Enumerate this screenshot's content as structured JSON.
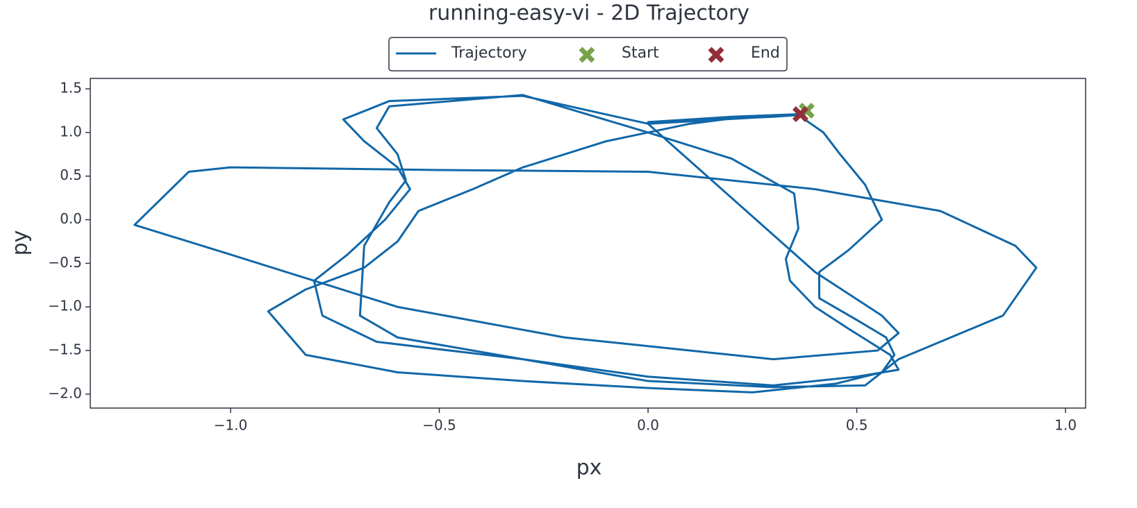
{
  "chart_data": {
    "type": "line",
    "title": "running-easy-vi - 2D Trajectory",
    "x_label": "px",
    "y_label": "py",
    "xlim": [
      -1.336,
      1.048
    ],
    "ylim": [
      -2.16,
      1.62
    ],
    "xticks": [
      {
        "value": -1,
        "label": "−1.0"
      },
      {
        "value": -0.5,
        "label": "−0.5"
      },
      {
        "value": 0,
        "label": "0.0"
      },
      {
        "value": 0.5,
        "label": "0.5"
      },
      {
        "value": 1,
        "label": "1.0"
      }
    ],
    "yticks": [
      {
        "value": 1.5,
        "label": "1.5"
      },
      {
        "value": 1,
        "label": "1.0"
      },
      {
        "value": 0.5,
        "label": "0.5"
      },
      {
        "value": 0,
        "label": "0.0"
      },
      {
        "value": -0.5,
        "label": "−0.5"
      },
      {
        "value": -1,
        "label": "−1.0"
      },
      {
        "value": -1.5,
        "label": "−1.5"
      },
      {
        "value": -2,
        "label": "−2.0"
      }
    ],
    "series": [
      {
        "name": "Trajectory",
        "color": "#1167a8",
        "x": [
          0.38,
          0.36,
          0.42,
          0.46,
          0.52,
          0.56,
          0.48,
          0.41,
          0.41,
          0.5,
          0.57,
          0.59,
          0.56,
          0.45,
          0.25,
          0.0,
          -0.3,
          -0.6,
          -0.82,
          -0.91,
          -0.82,
          -0.68,
          -0.6,
          -0.55,
          -0.42,
          -0.3,
          -0.1,
          0.1,
          0.2,
          0.3,
          0.36,
          0.0,
          -0.3,
          -0.62,
          -0.73,
          -0.68,
          -0.6,
          -0.57,
          -0.63,
          -0.72,
          -0.8,
          -0.78,
          -0.65,
          -0.3,
          0.0,
          0.3,
          0.5,
          0.6,
          0.58,
          0.48,
          0.4,
          0.34,
          0.33,
          0.36,
          0.35,
          0.2,
          0.0,
          -0.3,
          -0.62,
          -0.65,
          -0.6,
          -0.58,
          -0.62,
          -0.68,
          -0.69,
          -0.6,
          -0.3,
          0.0,
          0.3,
          0.52,
          0.6,
          0.85,
          0.93,
          0.88,
          0.7,
          0.4,
          0.0,
          -0.5,
          -1.0,
          -1.1,
          -1.23,
          -1.0,
          -0.6,
          -0.2,
          0.3,
          0.55,
          0.6,
          0.56,
          0.4,
          0.0,
          0.0,
          0.2,
          0.36
        ],
        "y": [
          1.25,
          1.2,
          1.0,
          0.75,
          0.4,
          0.0,
          -0.35,
          -0.6,
          -0.9,
          -1.15,
          -1.35,
          -1.55,
          -1.75,
          -1.88,
          -1.98,
          -1.93,
          -1.85,
          -1.75,
          -1.55,
          -1.05,
          -0.8,
          -0.55,
          -0.25,
          0.1,
          0.35,
          0.6,
          0.9,
          1.1,
          1.16,
          1.18,
          1.2,
          1.1,
          1.42,
          1.36,
          1.15,
          0.9,
          0.6,
          0.35,
          0.0,
          -0.4,
          -0.7,
          -1.1,
          -1.4,
          -1.6,
          -1.8,
          -1.9,
          -1.8,
          -1.72,
          -1.55,
          -1.25,
          -1.0,
          -0.7,
          -0.45,
          -0.1,
          0.3,
          0.7,
          1.0,
          1.43,
          1.3,
          1.05,
          0.75,
          0.45,
          0.2,
          -0.3,
          -1.1,
          -1.35,
          -1.6,
          -1.85,
          -1.92,
          -1.9,
          -1.6,
          -1.1,
          -0.55,
          -0.3,
          0.1,
          0.35,
          0.55,
          0.57,
          0.6,
          0.55,
          -0.06,
          -0.4,
          -1.0,
          -1.35,
          -1.6,
          -1.5,
          -1.3,
          -1.1,
          -0.6,
          1.1,
          1.12,
          1.18,
          1.21
        ]
      },
      {
        "name": "Start",
        "color": "#78a24a",
        "x": [
          0.38
        ],
        "y": [
          1.25
        ]
      },
      {
        "name": "End",
        "color": "#92303a",
        "x": [
          0.365
        ],
        "y": [
          1.21
        ]
      }
    ]
  }
}
